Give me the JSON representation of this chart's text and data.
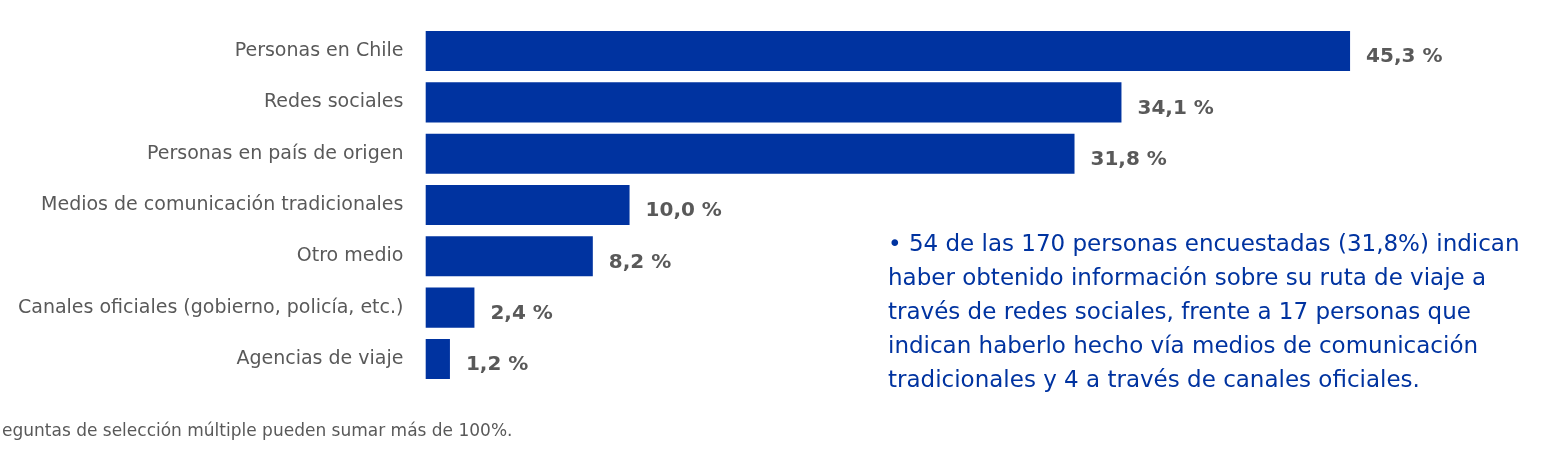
{
  "chart_data": {
    "type": "bar",
    "orientation": "horizontal",
    "categories": [
      "Personas en Chile",
      "Redes sociales",
      "Personas en país de origen",
      "Medios de comunicación tradicionales",
      "Otro medio",
      "Canales oficiales (gobierno, policía, etc.)",
      "Agencias de viaje"
    ],
    "values": [
      45.3,
      34.1,
      31.8,
      10.0,
      8.2,
      2.4,
      1.2
    ],
    "color": "#0033a0",
    "value_labels": [
      "45,3 %",
      "34,1 %",
      "31,8 %",
      "10,0 %",
      "8,2 %",
      "2,4 %",
      "1,2 %"
    ],
    "annotations": [
      "• 54 de las 170 personas encuestadas (31,8%) indican haber obtenido información sobre su ruta de viaje a través de redes sociales, frente a 17 personas que indican haberlo hecho vía medios de comunicación tradicionales y 4 a través de canales oficiales.",
      "eguntas de selección múltiple pueden sumar más de 100%."
    ]
  }
}
